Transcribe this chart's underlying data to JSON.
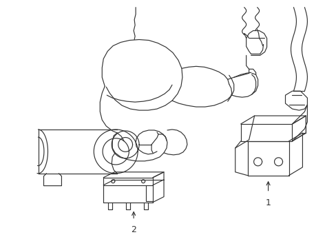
{
  "background_color": "#ffffff",
  "line_color": "#333333",
  "line_width": 0.85,
  "fig_width": 4.89,
  "fig_height": 3.6,
  "dpi": 100,
  "label1": "1",
  "label2": "2",
  "label_fontsize": 9
}
